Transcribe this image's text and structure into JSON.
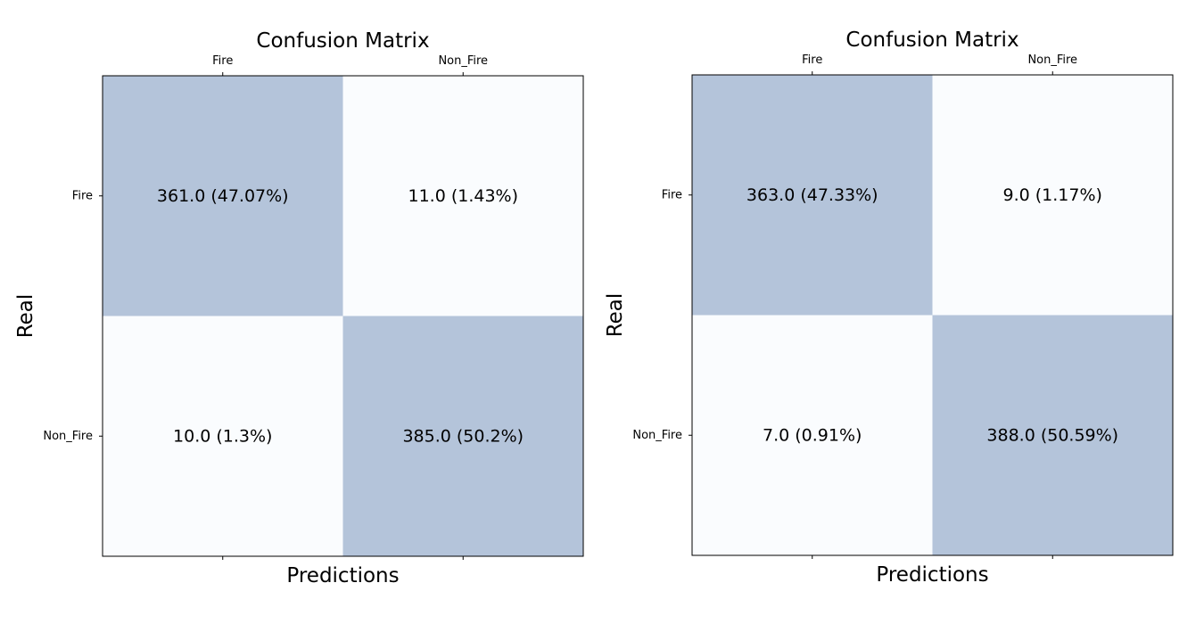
{
  "chart_data": [
    {
      "type": "heatmap",
      "title": "Confusion Matrix",
      "xlabel": "Predictions",
      "ylabel": "Real",
      "x_categories": [
        "Fire",
        "Non_Fire"
      ],
      "y_categories": [
        "Fire",
        "Non_Fire"
      ],
      "values": [
        [
          361,
          11
        ],
        [
          10,
          385
        ]
      ],
      "percentages": [
        [
          47.07,
          1.43
        ],
        [
          1.3,
          50.2
        ]
      ],
      "cell_labels": [
        [
          "361.0 (47.07%)",
          "11.0 (1.43%)"
        ],
        [
          "10.0 (1.3%)",
          "385.0 (50.2%)"
        ]
      ],
      "xaxis_position": "top",
      "grid": false,
      "legend": "none",
      "colormap": "Blues",
      "cell_alpha": 0.3
    },
    {
      "type": "heatmap",
      "title": "Confusion Matrix",
      "xlabel": "Predictions",
      "ylabel": "Real",
      "x_categories": [
        "Fire",
        "Non_Fire"
      ],
      "y_categories": [
        "Fire",
        "Non_Fire"
      ],
      "values": [
        [
          363,
          9
        ],
        [
          7,
          388
        ]
      ],
      "percentages": [
        [
          47.33,
          1.17
        ],
        [
          0.91,
          50.59
        ]
      ],
      "cell_labels": [
        [
          "363.0 (47.33%)",
          "9.0 (1.17%)"
        ],
        [
          "7.0 (0.91%)",
          "388.0 (50.59%)"
        ]
      ],
      "xaxis_position": "top",
      "grid": false,
      "legend": "none",
      "colormap": "Blues",
      "cell_alpha": 0.3
    }
  ],
  "colors": {
    "high_cell": "#b4c4da",
    "low_cell": "#fafcfe",
    "frame": "#000000",
    "text": "#000000"
  }
}
